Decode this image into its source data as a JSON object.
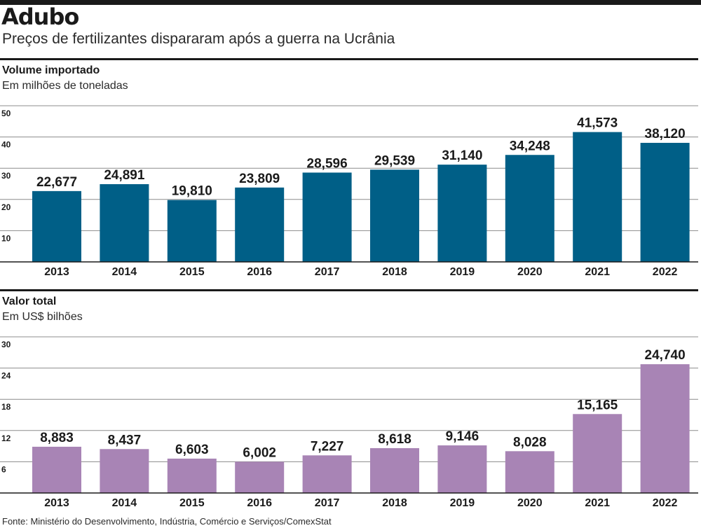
{
  "title": "Adubo",
  "subtitle": "Preços de fertilizantes dispararam após a guerra na Ucrânia",
  "source": "Fonte: Ministério do Desenvolvimento, Indústria, Comércio e Serviços/ComexStat",
  "colors": {
    "volume_bar": "#005f87",
    "value_bar": "#a884b5",
    "gridline": "#8c8c8c",
    "axis": "#1a1a1a"
  },
  "chart_data": [
    {
      "type": "bar",
      "title": "Volume importado",
      "subtitle": "Em milhões de toneladas",
      "categories": [
        "2013",
        "2014",
        "2015",
        "2016",
        "2017",
        "2018",
        "2019",
        "2020",
        "2021",
        "2022"
      ],
      "values": [
        22.677,
        24.891,
        19.81,
        23.809,
        28.596,
        29.539,
        31.14,
        34.248,
        41.573,
        38.12
      ],
      "data_labels": [
        "22,677",
        "24,891",
        "19,810",
        "23,809",
        "28,596",
        "29,539",
        "31,140",
        "34,248",
        "41,573",
        "38,120"
      ],
      "ylim": [
        0,
        50
      ],
      "yticks": [
        10,
        20,
        30,
        40,
        50
      ],
      "grid": true
    },
    {
      "type": "bar",
      "title": "Valor total",
      "subtitle": "Em US$ bilhões",
      "categories": [
        "2013",
        "2014",
        "2015",
        "2016",
        "2017",
        "2018",
        "2019",
        "2020",
        "2021",
        "2022"
      ],
      "values": [
        8.883,
        8.437,
        6.603,
        6.002,
        7.227,
        8.618,
        9.146,
        8.028,
        15.165,
        24.74
      ],
      "data_labels": [
        "8,883",
        "8,437",
        "6,603",
        "6,002",
        "7,227",
        "8,618",
        "9,146",
        "8,028",
        "15,165",
        "24,740"
      ],
      "ylim": [
        0,
        30
      ],
      "yticks": [
        6,
        12,
        18,
        24,
        30
      ],
      "grid": true
    }
  ]
}
